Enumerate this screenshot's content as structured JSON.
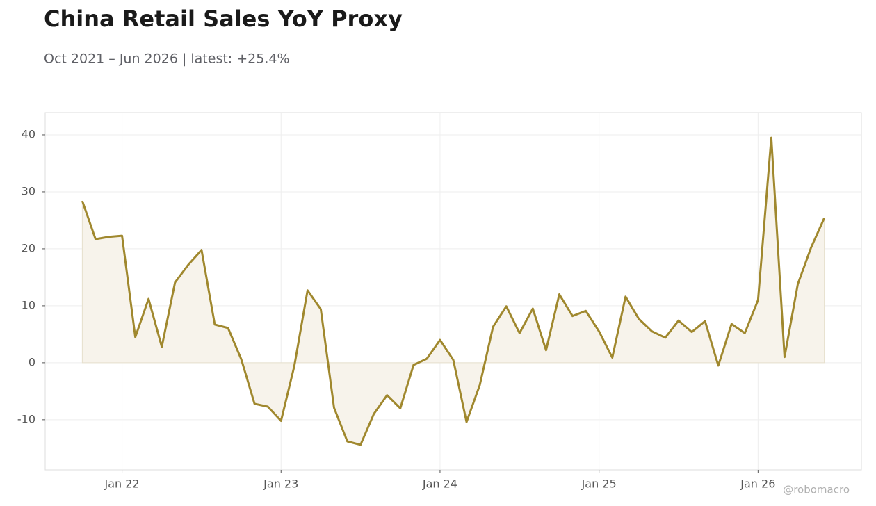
{
  "chart_data": {
    "type": "line",
    "title": "China Retail Sales YoY Proxy",
    "subtitle": "Oct 2021 – Jun 2026 | latest: +25.4%",
    "watermark": "@robomacro",
    "x": [
      "2021-10",
      "2021-11",
      "2021-12",
      "2022-01",
      "2022-02",
      "2022-03",
      "2022-04",
      "2022-05",
      "2022-06",
      "2022-07",
      "2022-08",
      "2022-09",
      "2022-10",
      "2022-11",
      "2022-12",
      "2023-01",
      "2023-02",
      "2023-03",
      "2023-04",
      "2023-05",
      "2023-06",
      "2023-07",
      "2023-08",
      "2023-09",
      "2023-10",
      "2023-11",
      "2023-12",
      "2024-01",
      "2024-02",
      "2024-03",
      "2024-04",
      "2024-05",
      "2024-06",
      "2024-07",
      "2024-08",
      "2024-09",
      "2024-10",
      "2024-11",
      "2024-12",
      "2025-01",
      "2025-02",
      "2025-03",
      "2025-04",
      "2025-05",
      "2025-06",
      "2025-07",
      "2025-08",
      "2025-09",
      "2025-10",
      "2025-11",
      "2025-12",
      "2026-01",
      "2026-02",
      "2026-03",
      "2026-04",
      "2026-05",
      "2026-06"
    ],
    "values": [
      28.4,
      21.7,
      22.1,
      22.3,
      4.5,
      11.2,
      2.8,
      14.1,
      17.2,
      19.8,
      6.7,
      6.1,
      0.6,
      -7.2,
      -7.7,
      -10.2,
      -0.6,
      12.7,
      9.4,
      -7.9,
      -13.8,
      -14.4,
      -9.0,
      -5.7,
      -8.0,
      -0.4,
      0.7,
      4.0,
      0.5,
      -10.4,
      -3.9,
      6.3,
      9.9,
      5.2,
      9.5,
      2.2,
      12.0,
      8.2,
      9.1,
      5.5,
      0.9,
      11.6,
      7.7,
      5.5,
      4.4,
      7.4,
      5.4,
      7.3,
      -0.5,
      6.8,
      5.2,
      11.0,
      39.5,
      1.0,
      13.8,
      20.2,
      25.4
    ],
    "color": "#a0882e",
    "fill_color": "#f7f3eb",
    "ylim": [
      -18.8,
      43.9
    ],
    "yticks": [
      -10,
      0,
      10,
      20,
      30,
      40
    ],
    "xticks": [
      {
        "value": "2022-01",
        "label": "Jan 22"
      },
      {
        "value": "2023-01",
        "label": "Jan 23"
      },
      {
        "value": "2024-01",
        "label": "Jan 24"
      },
      {
        "value": "2025-01",
        "label": "Jan 25"
      },
      {
        "value": "2026-01",
        "label": "Jan 26"
      }
    ],
    "grid": true
  }
}
